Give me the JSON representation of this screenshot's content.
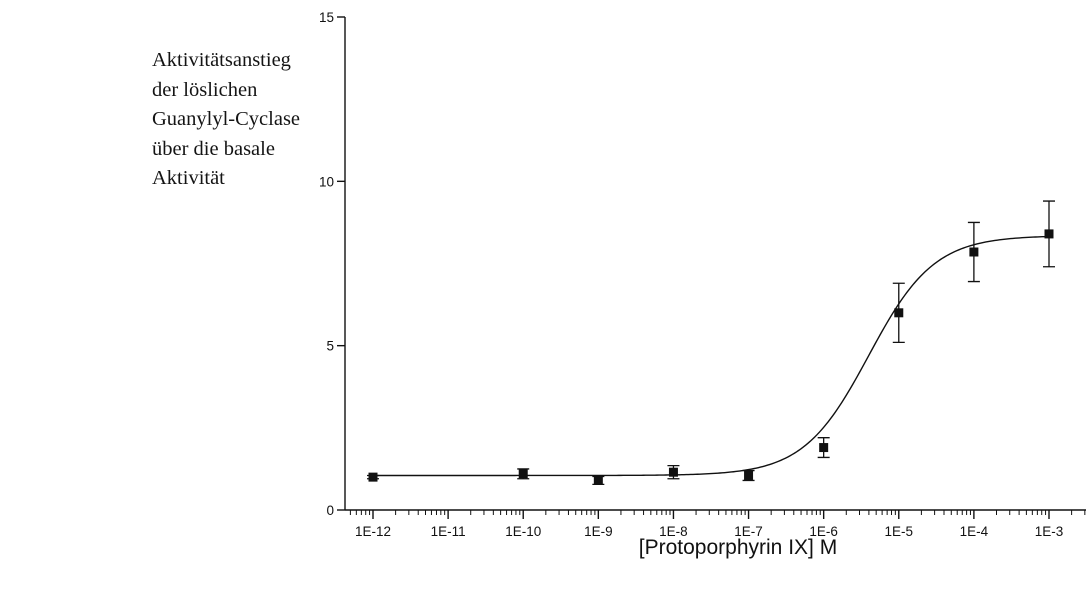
{
  "y_axis_title_lines": [
    "Aktivitätsanstieg",
    "der löslichen",
    "Guanylyl-Cyclase",
    "über die basale",
    "Aktivität"
  ],
  "chart_data": {
    "type": "scatter",
    "title": "",
    "xlabel": "[Protoporphyrin IX] M",
    "ylabel": "Aktivitätsanstieg der löslichen Guanylyl-Cyclase über die basale Aktivität",
    "x_scale": "log",
    "xlim": [
      1e-12,
      0.003
    ],
    "ylim": [
      0,
      15
    ],
    "x_ticks": [
      1e-12,
      1e-11,
      1e-10,
      1e-09,
      1e-08,
      1e-07,
      1e-06,
      1e-05,
      0.0001,
      0.001
    ],
    "x_tick_labels": [
      "1E-12",
      "1E-11",
      "1E-10",
      "1E-9",
      "1E-8",
      "1E-7",
      "1E-6",
      "1E-5",
      "1E-4",
      "1E-3"
    ],
    "y_ticks": [
      0,
      5,
      10,
      15
    ],
    "y_tick_labels": [
      "0",
      "5",
      "10",
      "15"
    ],
    "grid": false,
    "legend": "none",
    "marker_color": "#111111",
    "line_color": "#111111",
    "series": [
      {
        "x": [
          1e-12,
          1e-10,
          1e-09,
          1e-08,
          1e-07,
          1e-06,
          1e-05,
          0.0001,
          0.001
        ],
        "y": [
          1.0,
          1.1,
          0.9,
          1.15,
          1.05,
          1.9,
          6.0,
          7.85,
          8.4
        ],
        "error": [
          0.05,
          0.15,
          0.12,
          0.2,
          0.15,
          0.3,
          0.9,
          0.9,
          1.0
        ]
      }
    ],
    "fit_curve": {
      "model": "sigmoidal dose-response",
      "bottom": 1.05,
      "top": 8.35,
      "log_ec50": -5.4,
      "hill_slope": 1
    }
  }
}
